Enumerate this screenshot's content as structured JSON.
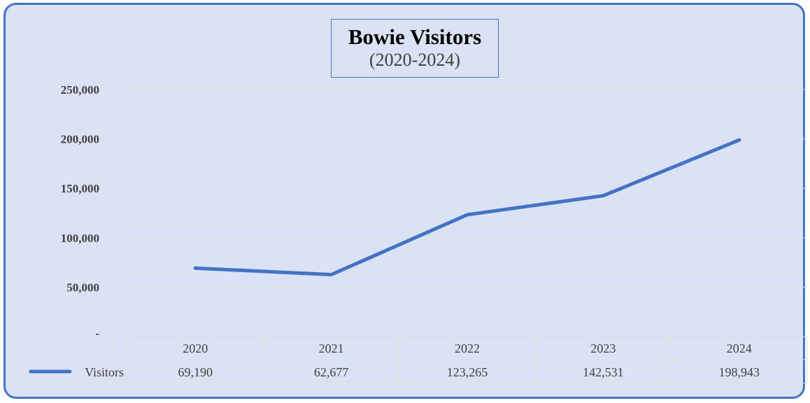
{
  "chart_data": {
    "type": "line",
    "title": "Bowie Visitors",
    "subtitle": "(2020-2024)",
    "categories": [
      "2020",
      "2021",
      "2022",
      "2023",
      "2024"
    ],
    "y_tick_labels": [
      "-",
      "50,000",
      "100,000",
      "150,000",
      "200,000",
      "250,000"
    ],
    "ylim": [
      0,
      250000
    ],
    "y_tick_values": [
      0,
      50000,
      100000,
      150000,
      200000,
      250000
    ],
    "series": [
      {
        "name": "Visitors",
        "values": [
          69190,
          62677,
          123265,
          142531,
          198943
        ],
        "value_labels": [
          "69,190",
          "62,677",
          "123,265",
          "142,531",
          "198,943"
        ],
        "color": "#4472c4"
      }
    ],
    "grid": true,
    "legend": "data-table",
    "data_table": true
  }
}
